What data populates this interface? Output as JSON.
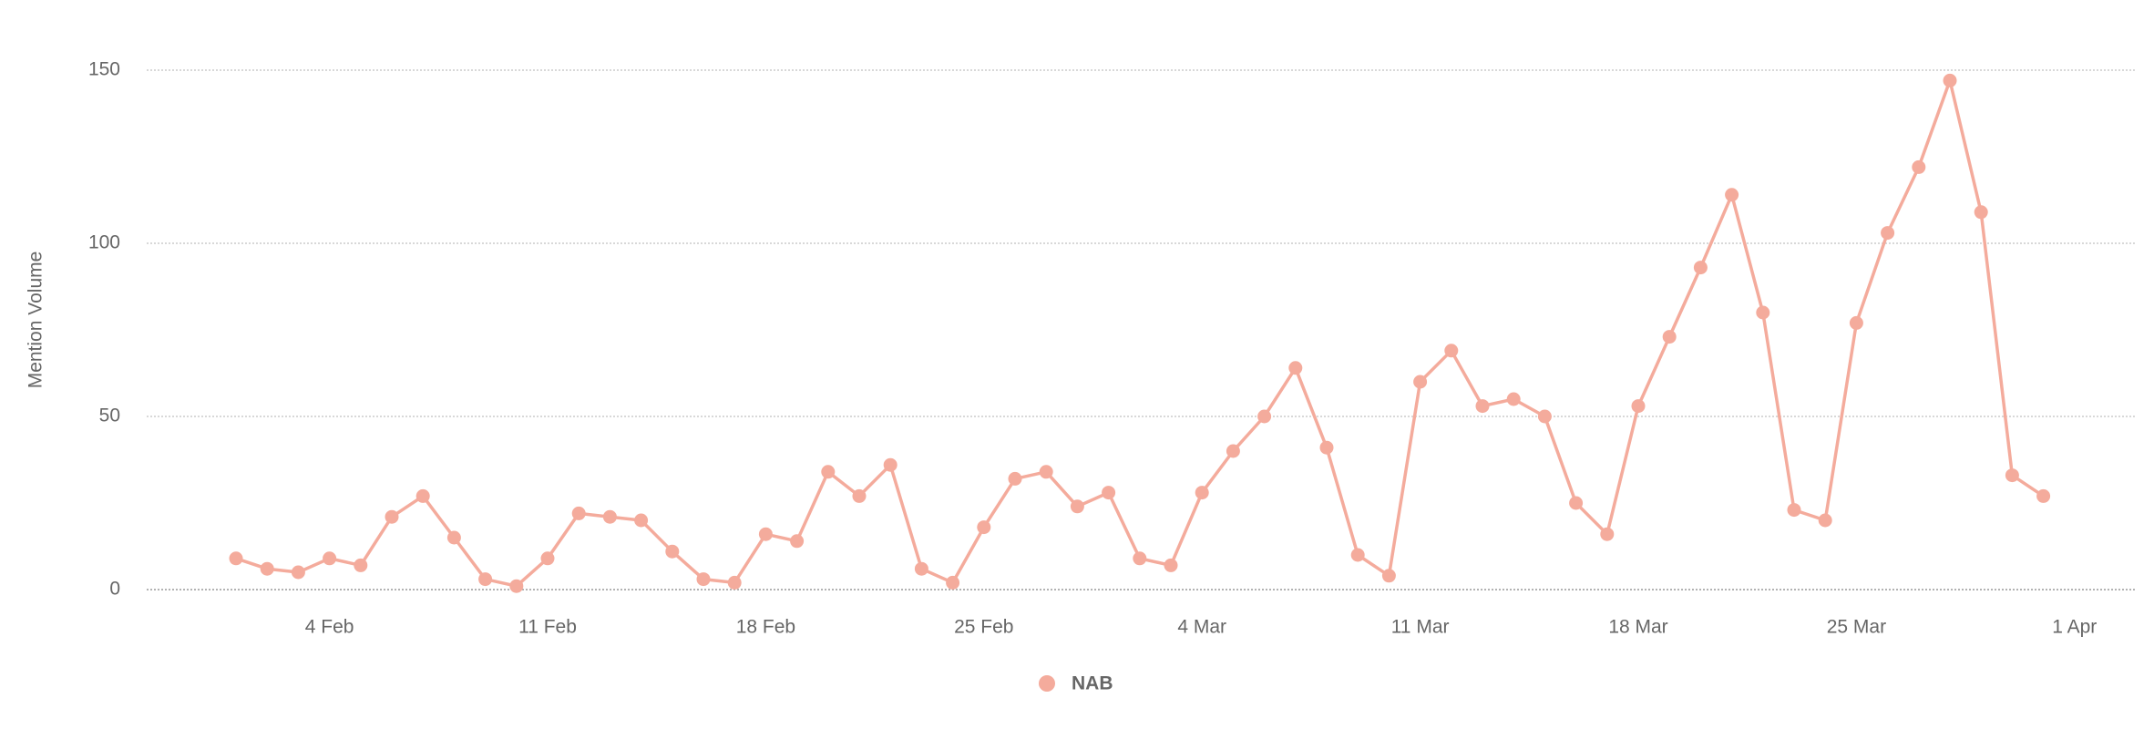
{
  "chart_data": {
    "type": "line",
    "y_label": "Mention Volume",
    "categories": [
      null,
      null,
      null,
      "4 Feb",
      null,
      null,
      null,
      null,
      null,
      null,
      "11 Feb",
      null,
      null,
      null,
      null,
      null,
      null,
      "18 Feb",
      null,
      null,
      null,
      null,
      null,
      null,
      "25 Feb",
      null,
      null,
      null,
      null,
      null,
      null,
      "4 Mar",
      null,
      null,
      null,
      null,
      null,
      null,
      "11 Mar",
      null,
      null,
      null,
      null,
      null,
      null,
      "18 Mar",
      null,
      null,
      null,
      null,
      null,
      null,
      "25 Mar",
      null,
      null,
      null,
      null,
      null,
      null,
      "1 Apr"
    ],
    "series": [
      {
        "name": "NAB",
        "color": "#f4ab9c",
        "values": [
          9,
          6,
          5,
          9,
          7,
          21,
          27,
          15,
          3,
          1,
          9,
          22,
          21,
          20,
          11,
          3,
          2,
          16,
          14,
          34,
          27,
          36,
          6,
          2,
          18,
          32,
          34,
          24,
          28,
          9,
          7,
          28,
          40,
          50,
          64,
          41,
          10,
          4,
          60,
          69,
          53,
          55,
          50,
          25,
          16,
          53,
          73,
          93,
          114,
          80,
          23,
          20,
          77,
          103,
          122,
          147,
          109,
          33,
          27,
          null
        ]
      }
    ],
    "ylim": [
      0,
      150
    ],
    "yticks": [
      0,
      50,
      100,
      150
    ],
    "grid": true
  }
}
